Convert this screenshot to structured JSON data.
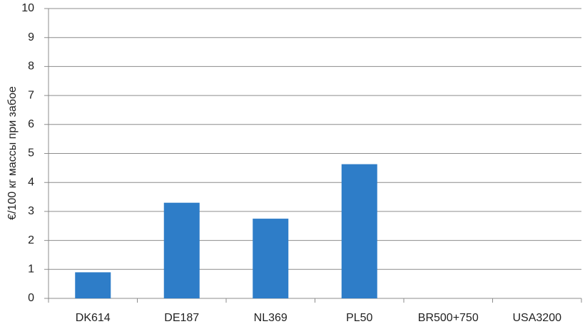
{
  "chart_data": {
    "type": "bar",
    "y_label": "€/100 кг массы при забое",
    "categories": [
      "DK614",
      "DE187",
      "NL369",
      "PL50",
      "BR500+750",
      "USA3200"
    ],
    "values": [
      0.9,
      3.3,
      2.75,
      4.63,
      0,
      0
    ],
    "color": "#2e7dc8",
    "ylim": [
      0,
      10
    ],
    "yticks": [
      0,
      1,
      2,
      3,
      4,
      5,
      6,
      7,
      8,
      9,
      10
    ],
    "grid": true
  }
}
